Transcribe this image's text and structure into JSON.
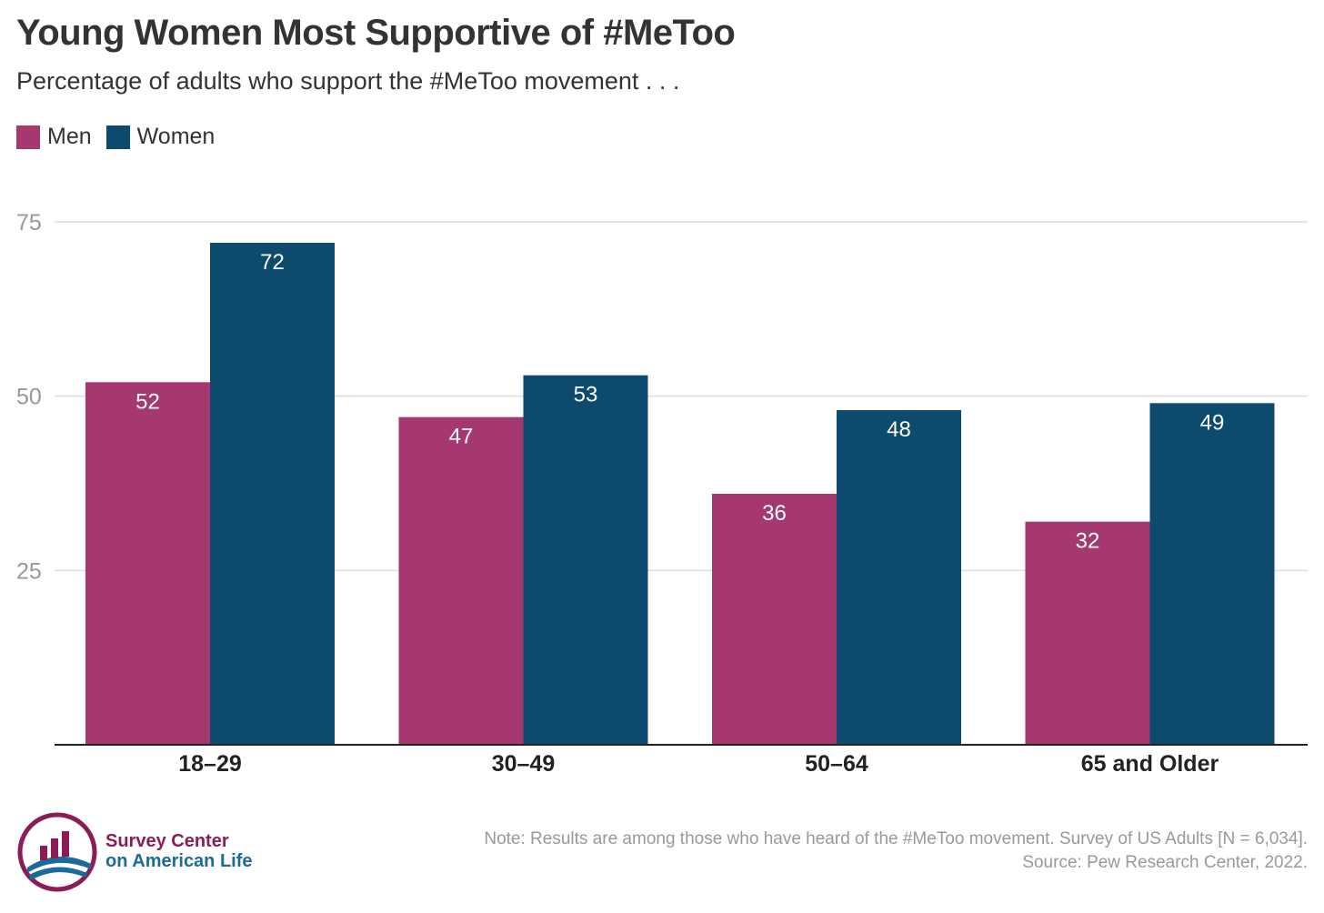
{
  "title": "Young Women Most Supportive of #MeToo",
  "subtitle": "Percentage of adults who support the #MeToo movement . . .",
  "legend": [
    {
      "label": "Men",
      "color": "#a5386e"
    },
    {
      "label": "Women",
      "color": "#0c4a6e"
    }
  ],
  "chart_data": {
    "type": "bar",
    "title": "Young Women Most Supportive of #MeToo",
    "subtitle": "Percentage of adults who support the #MeToo movement . . .",
    "categories": [
      "18–29",
      "30–49",
      "50–64",
      "65 and Older"
    ],
    "series": [
      {
        "name": "Men",
        "color": "#a5386e",
        "values": [
          52,
          47,
          36,
          32
        ]
      },
      {
        "name": "Women",
        "color": "#0c4a6e",
        "values": [
          72,
          53,
          48,
          49
        ]
      }
    ],
    "yticks": [
      25,
      50,
      75
    ],
    "ylim": [
      0,
      75
    ],
    "xlabel": "",
    "ylabel": "",
    "grid": true,
    "legend_position": "top-left"
  },
  "footer": {
    "note": "Note: Results are among those who have heard of the #MeToo movement. Survey of US Adults [N = 6,034].",
    "source": "Source: Pew Research Center, 2022."
  },
  "logo": {
    "line1": "Survey Center",
    "line2": "on American Life"
  },
  "colors": {
    "men": "#a5386e",
    "women": "#0c4a6e",
    "grid": "#dddddd",
    "axis": "#222222",
    "tick_label": "#999999"
  }
}
